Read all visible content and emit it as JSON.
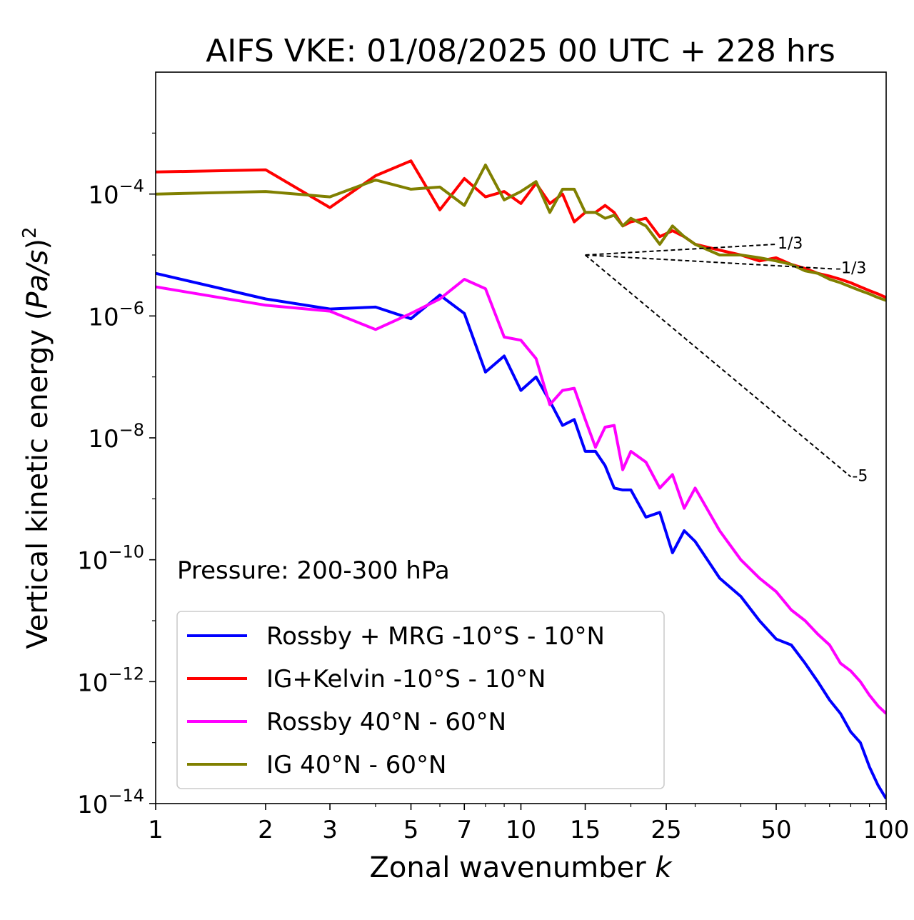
{
  "chart_data": {
    "type": "line",
    "title": "AIFS VKE: 01/08/2025 00 UTC + 228 hrs",
    "xlabel": "Zonal wavenumber ",
    "xlabel_italic": "k",
    "ylabel": "Vertical kinetic energy (",
    "ylabel_italic": "Pa/s",
    "ylabel_tail": ")",
    "ylabel_sup": "2",
    "xscale": "log",
    "yscale": "log",
    "xlim": [
      1,
      100
    ],
    "ylim": [
      1e-14,
      0.01
    ],
    "xticks": [
      1,
      2,
      3,
      5,
      7,
      10,
      15,
      25,
      50,
      100
    ],
    "xtick_labels": [
      "1",
      "2",
      "3",
      "5",
      "7",
      "10",
      "15",
      "25",
      "50",
      "100"
    ],
    "yticks": [
      {
        "value": 0.0001,
        "base": "10",
        "exp": "−4"
      },
      {
        "value": 1e-06,
        "base": "10",
        "exp": "−6"
      },
      {
        "value": 1e-08,
        "base": "10",
        "exp": "−8"
      },
      {
        "value": 1e-10,
        "base": "10",
        "exp": "−10"
      },
      {
        "value": 1e-12,
        "base": "10",
        "exp": "−12"
      },
      {
        "value": 1e-14,
        "base": "10",
        "exp": "−14"
      }
    ],
    "annotation": "Pressure: 200-300 hPa",
    "legend_position": "lower-left",
    "series": [
      {
        "name": "Rossby + MRG -10°S - 10°N",
        "color": "#0000ff",
        "x": [
          1,
          2,
          3,
          4,
          5,
          6,
          7,
          8,
          9,
          10,
          11,
          12,
          13,
          14,
          15,
          16,
          17,
          18,
          19,
          20,
          22,
          24,
          26,
          28,
          30,
          35,
          40,
          45,
          50,
          55,
          60,
          65,
          70,
          75,
          80,
          85,
          90,
          95,
          100
        ],
        "y": [
          5e-06,
          1.9e-06,
          1.3e-06,
          1.4e-06,
          9e-07,
          2.2e-06,
          1.1e-06,
          1.2e-07,
          2.2e-07,
          6e-08,
          1e-07,
          4e-08,
          1.6e-08,
          2e-08,
          6e-09,
          6e-09,
          3.5e-09,
          1.5e-09,
          1.4e-09,
          1.4e-09,
          5e-10,
          6e-10,
          1.3e-10,
          3e-10,
          2e-10,
          5e-11,
          2.5e-11,
          1e-11,
          5e-12,
          4e-12,
          2e-12,
          1e-12,
          5e-13,
          3e-13,
          1.5e-13,
          1e-13,
          4e-14,
          2e-14,
          1.2e-14
        ]
      },
      {
        "name": "IG+Kelvin -10°S - 10°N",
        "color": "#ff0000",
        "x": [
          1,
          2,
          3,
          4,
          5,
          6,
          7,
          8,
          9,
          10,
          11,
          12,
          13,
          14,
          15,
          16,
          17,
          18,
          19,
          20,
          22,
          24,
          26,
          28,
          30,
          35,
          40,
          45,
          50,
          55,
          60,
          65,
          70,
          75,
          80,
          85,
          90,
          95,
          100
        ],
        "y": [
          0.00023,
          0.00025,
          6e-05,
          0.0002,
          0.00035,
          5.5e-05,
          0.00018,
          9e-05,
          0.00011,
          7e-05,
          0.00015,
          7e-05,
          0.0001,
          3.5e-05,
          5e-05,
          5e-05,
          6.5e-05,
          5e-05,
          3e-05,
          3.5e-05,
          4e-05,
          2e-05,
          2.5e-05,
          2e-05,
          1.5e-05,
          1.2e-05,
          1e-05,
          8e-06,
          9e-06,
          7e-06,
          6e-06,
          5e-06,
          4.5e-06,
          4e-06,
          3.5e-06,
          3e-06,
          2.6e-06,
          2.3e-06,
          2e-06
        ]
      },
      {
        "name": "Rossby 40°N - 60°N",
        "color": "#ff00ff",
        "x": [
          1,
          2,
          3,
          4,
          5,
          6,
          7,
          8,
          9,
          10,
          11,
          12,
          13,
          14,
          15,
          16,
          17,
          18,
          19,
          20,
          22,
          24,
          26,
          28,
          30,
          35,
          40,
          45,
          50,
          55,
          60,
          65,
          70,
          75,
          80,
          85,
          90,
          95,
          100
        ],
        "y": [
          3e-06,
          1.5e-06,
          1.2e-06,
          6e-07,
          1.1e-06,
          1.9e-06,
          4e-06,
          2.8e-06,
          4.5e-07,
          4e-07,
          2e-07,
          3.5e-08,
          6e-08,
          6.5e-08,
          2e-08,
          7e-09,
          1.5e-08,
          1.6e-08,
          3e-09,
          6e-09,
          4e-09,
          1.5e-09,
          2.5e-09,
          7e-10,
          1.5e-09,
          3e-10,
          1e-10,
          5e-11,
          3e-11,
          1.5e-11,
          1e-11,
          6e-12,
          4e-12,
          2e-12,
          1.5e-12,
          1e-12,
          6e-13,
          4e-13,
          3e-13
        ]
      },
      {
        "name": "IG 40°N - 60°N",
        "color": "#808000",
        "x": [
          1,
          2,
          3,
          4,
          5,
          6,
          7,
          8,
          9,
          10,
          11,
          12,
          13,
          14,
          15,
          16,
          17,
          18,
          19,
          20,
          22,
          24,
          26,
          28,
          30,
          35,
          40,
          45,
          50,
          55,
          60,
          65,
          70,
          75,
          80,
          85,
          90,
          95,
          100
        ],
        "y": [
          0.0001,
          0.00011,
          9e-05,
          0.00017,
          0.00012,
          0.00013,
          6.5e-05,
          0.0003,
          8e-05,
          0.00011,
          0.00016,
          5e-05,
          0.00012,
          0.00012,
          5e-05,
          5e-05,
          4e-05,
          4.5e-05,
          3e-05,
          4e-05,
          3e-05,
          1.5e-05,
          3e-05,
          2e-05,
          1.5e-05,
          1e-05,
          1e-05,
          9e-06,
          8e-06,
          7e-06,
          5.5e-06,
          5e-06,
          4e-06,
          3.5e-06,
          3e-06,
          2.6e-06,
          2.3e-06,
          2e-06,
          1.8e-06
        ]
      }
    ],
    "reference_lines": [
      {
        "label": "1/3",
        "x": [
          15,
          50
        ],
        "y": [
          1e-05,
          1.5e-05
        ]
      },
      {
        "label": "-1/3",
        "x": [
          15,
          72
        ],
        "y": [
          1e-05,
          5.9e-06
        ]
      },
      {
        "label": "-5",
        "x": [
          15,
          80
        ],
        "y": [
          1e-05,
          2.3e-09
        ]
      }
    ]
  }
}
